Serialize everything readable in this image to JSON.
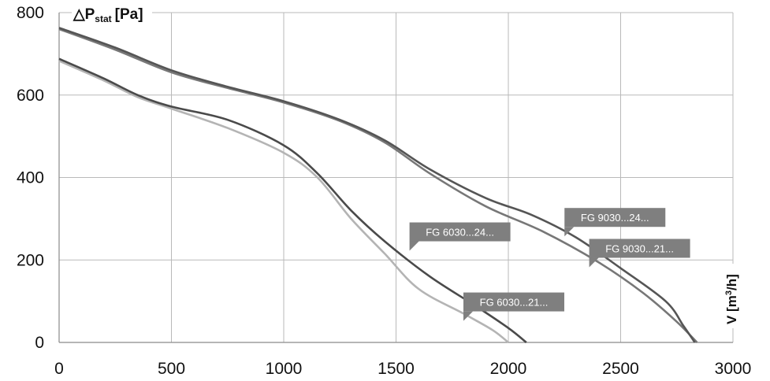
{
  "chart_data": {
    "type": "line",
    "title": "",
    "ylabel": {
      "main": "△P",
      "sub": "stat",
      "unit": "[Pa]"
    },
    "xlabel": {
      "main": "V [m",
      "sup": "3",
      "rest": "/h]"
    },
    "xlim": [
      0,
      3000
    ],
    "ylim": [
      0,
      800
    ],
    "xticks": [
      0,
      500,
      1000,
      1500,
      2000,
      2500,
      3000
    ],
    "yticks": [
      0,
      200,
      400,
      600,
      800
    ],
    "grid": true,
    "series": [
      {
        "name": "FG 9030...24...",
        "color": "#555555",
        "points": [
          [
            0,
            763
          ],
          [
            250,
            715
          ],
          [
            500,
            660
          ],
          [
            750,
            620
          ],
          [
            1000,
            585
          ],
          [
            1250,
            540
          ],
          [
            1450,
            490
          ],
          [
            1650,
            420
          ],
          [
            1900,
            350
          ],
          [
            2100,
            310
          ],
          [
            2300,
            255
          ],
          [
            2500,
            180
          ],
          [
            2700,
            100
          ],
          [
            2780,
            40
          ],
          [
            2830,
            0
          ]
        ]
      },
      {
        "name": "FG 9030...21...",
        "color": "#777777",
        "points": [
          [
            0,
            760
          ],
          [
            250,
            710
          ],
          [
            500,
            655
          ],
          [
            750,
            617
          ],
          [
            1000,
            582
          ],
          [
            1250,
            537
          ],
          [
            1450,
            485
          ],
          [
            1650,
            410
          ],
          [
            1900,
            330
          ],
          [
            2150,
            270
          ],
          [
            2400,
            195
          ],
          [
            2600,
            120
          ],
          [
            2750,
            50
          ],
          [
            2840,
            0
          ]
        ]
      },
      {
        "name": "FG 6030...24...",
        "color": "#4a4a4a",
        "points": [
          [
            0,
            688
          ],
          [
            200,
            640
          ],
          [
            350,
            600
          ],
          [
            500,
            572
          ],
          [
            750,
            540
          ],
          [
            1000,
            478
          ],
          [
            1150,
            410
          ],
          [
            1300,
            320
          ],
          [
            1450,
            245
          ],
          [
            1650,
            160
          ],
          [
            1850,
            90
          ],
          [
            2000,
            35
          ],
          [
            2080,
            0
          ]
        ]
      },
      {
        "name": "FG 6030...21...",
        "color": "#b4b4b4",
        "points": [
          [
            0,
            683
          ],
          [
            200,
            635
          ],
          [
            350,
            595
          ],
          [
            500,
            567
          ],
          [
            750,
            520
          ],
          [
            1000,
            460
          ],
          [
            1150,
            400
          ],
          [
            1300,
            300
          ],
          [
            1450,
            215
          ],
          [
            1600,
            130
          ],
          [
            1800,
            70
          ],
          [
            1930,
            30
          ],
          [
            2000,
            0
          ]
        ]
      }
    ],
    "annotations": [
      {
        "text": "FG 6030...24...",
        "series": 2,
        "at": [
          1560,
          230
        ]
      },
      {
        "text": "FG 9030...24...",
        "series": 0,
        "at": [
          2250,
          265
        ]
      },
      {
        "text": "FG 9030...21...",
        "series": 1,
        "at": [
          2360,
          190
        ]
      },
      {
        "text": "FG 6030...21...",
        "series": 3,
        "at": [
          1800,
          60
        ]
      }
    ]
  }
}
